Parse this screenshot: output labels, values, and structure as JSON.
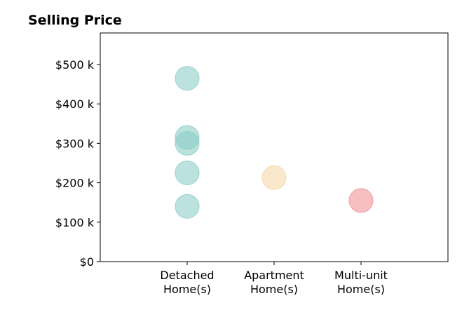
{
  "chart_data": {
    "type": "scatter",
    "title": "Selling Price",
    "xlabel": "",
    "ylabel": "",
    "categories": [
      "Detached\nHome(s)",
      "Apartment\nHome(s)",
      "Multi-unit\nHome(s)"
    ],
    "ylim": [
      0,
      580000
    ],
    "yticks": [
      0,
      100000,
      200000,
      300000,
      400000,
      500000
    ],
    "ytick_labels": [
      "$0",
      "$100 k",
      "$200 k",
      "$300 k",
      "$400 k",
      "$500 k"
    ],
    "grid": false,
    "points": [
      {
        "category": "Detached\nHome(s)",
        "y": 465000,
        "color": "#8ecfc9"
      },
      {
        "category": "Detached\nHome(s)",
        "y": 315000,
        "color": "#8ecfc9"
      },
      {
        "category": "Detached\nHome(s)",
        "y": 300000,
        "color": "#8ecfc9"
      },
      {
        "category": "Detached\nHome(s)",
        "y": 225000,
        "color": "#8ecfc9"
      },
      {
        "category": "Detached\nHome(s)",
        "y": 140000,
        "color": "#8ecfc9"
      },
      {
        "category": "Apartment\nHome(s)",
        "y": 213000,
        "color": "#f5d9a8"
      },
      {
        "category": "Multi-unit\nHome(s)",
        "y": 155000,
        "color": "#f2949a"
      }
    ],
    "colors": {
      "Detached\nHome(s)": "#8ecfc9",
      "Apartment\nHome(s)": "#f5d9a8",
      "Multi-unit\nHome(s)": "#f2949a"
    }
  }
}
